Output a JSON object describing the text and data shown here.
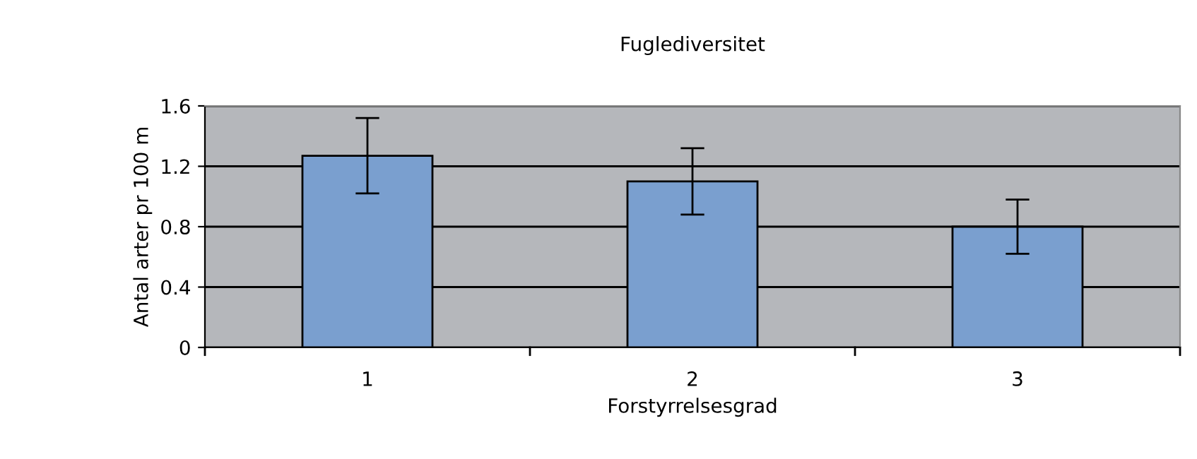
{
  "chart_data": {
    "type": "bar",
    "title": "Fuglediversitet",
    "xlabel": "Forstyrrelsesgrad",
    "ylabel": "Antal arter pr 100 m",
    "categories": [
      "1",
      "2",
      "3"
    ],
    "values": [
      1.27,
      1.1,
      0.8
    ],
    "errors": [
      0.25,
      0.22,
      0.18
    ],
    "color": "#7a9fcf",
    "ylim": [
      0,
      1.6
    ],
    "yticks": [
      0,
      0.4,
      0.8,
      1.2,
      1.6
    ],
    "grid": "y",
    "legend": false
  }
}
